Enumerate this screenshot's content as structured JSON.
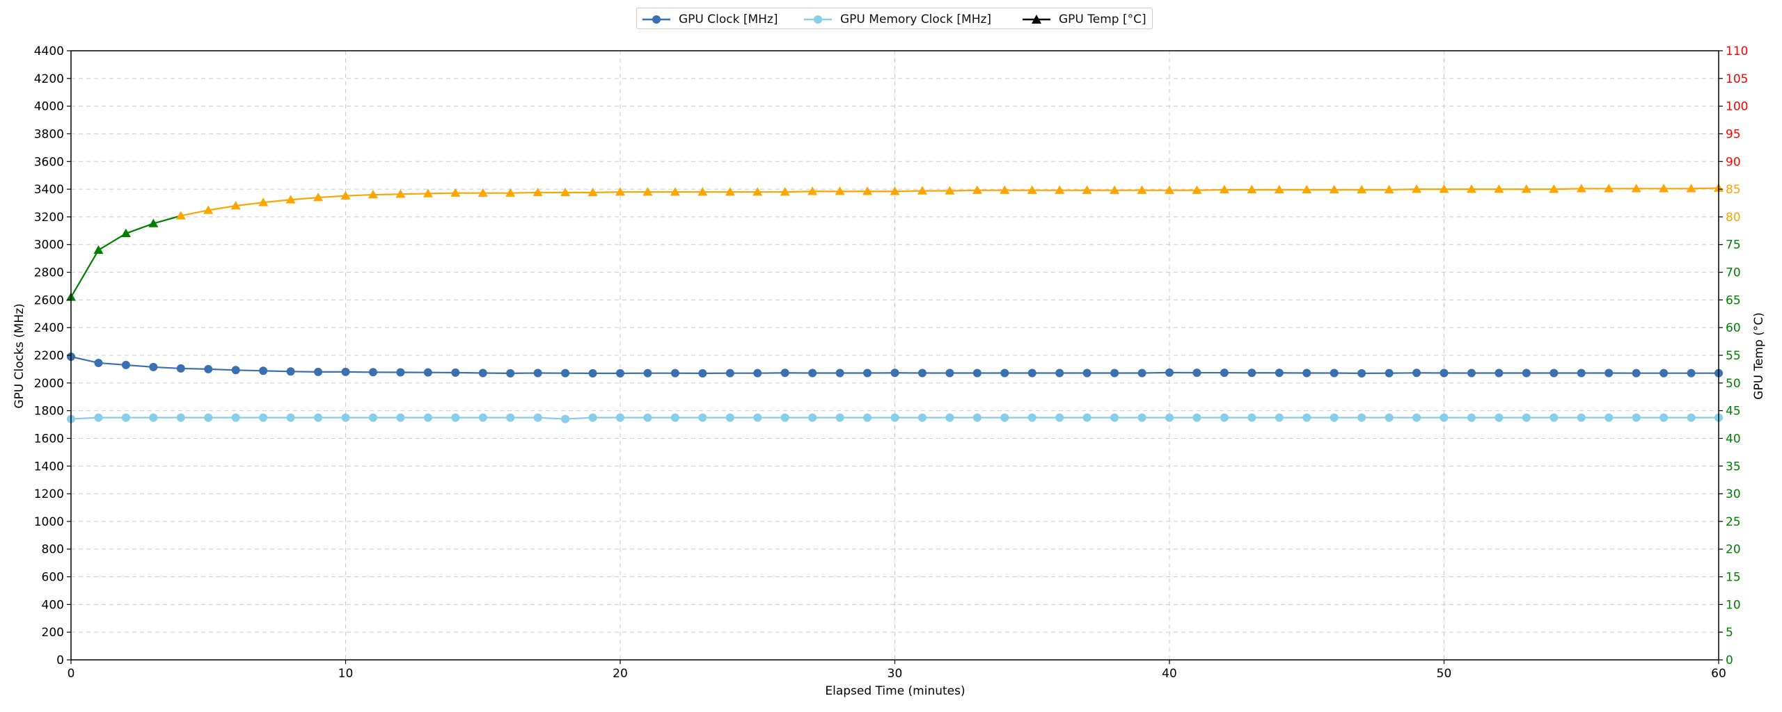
{
  "chart_data": {
    "type": "line",
    "xlabel": "Elapsed Time (minutes)",
    "ylabel_left": "GPU Clocks (MHz)",
    "ylabel_right": "GPU Temp (°C)",
    "xlim": [
      0,
      60
    ],
    "ylim_left": [
      0,
      4400
    ],
    "ylim_right": [
      0,
      110
    ],
    "x_ticks": [
      0,
      10,
      20,
      30,
      40,
      50,
      60
    ],
    "y_ticks_left": [
      0,
      200,
      400,
      600,
      800,
      1000,
      1200,
      1400,
      1600,
      1800,
      2000,
      2200,
      2400,
      2600,
      2800,
      3000,
      3200,
      3400,
      3600,
      3800,
      4000,
      4200,
      4400
    ],
    "y_ticks_right": [
      0,
      5,
      10,
      15,
      20,
      25,
      30,
      35,
      40,
      45,
      50,
      55,
      60,
      65,
      70,
      75,
      80,
      85,
      90,
      95,
      100,
      105,
      110
    ],
    "grid": true,
    "legend_position": "top-center",
    "right_tick_colors": {
      "green_below": 80,
      "orange": [
        80,
        85
      ],
      "red_above": 85,
      "green": "#008000",
      "orange_color": "#FFA500",
      "red": "#FF0000"
    },
    "temp_color_threshold": 80,
    "series": [
      {
        "name": "GPU Clock [MHz]",
        "axis": "left",
        "color": "#3a6fb0",
        "marker": "circle",
        "x": [
          0,
          1,
          2,
          3,
          4,
          5,
          6,
          7,
          8,
          9,
          10,
          11,
          12,
          13,
          14,
          15,
          16,
          17,
          18,
          19,
          20,
          21,
          22,
          23,
          24,
          25,
          26,
          27,
          28,
          29,
          30,
          31,
          32,
          33,
          34,
          35,
          36,
          37,
          38,
          39,
          40,
          41,
          42,
          43,
          44,
          45,
          46,
          47,
          48,
          49,
          50,
          51,
          52,
          53,
          54,
          55,
          56,
          57,
          58,
          59,
          60
        ],
        "values": [
          2190,
          2145,
          2130,
          2115,
          2105,
          2100,
          2093,
          2088,
          2083,
          2080,
          2080,
          2078,
          2077,
          2076,
          2075,
          2072,
          2070,
          2072,
          2071,
          2070,
          2070,
          2071,
          2071,
          2070,
          2071,
          2071,
          2073,
          2072,
          2072,
          2072,
          2073,
          2072,
          2072,
          2072,
          2072,
          2072,
          2072,
          2072,
          2072,
          2072,
          2075,
          2074,
          2074,
          2073,
          2073,
          2072,
          2072,
          2070,
          2071,
          2073,
          2072,
          2072,
          2072,
          2072,
          2072,
          2072,
          2072,
          2071,
          2071,
          2071,
          2071
        ]
      },
      {
        "name": "GPU Memory Clock [MHz]",
        "axis": "left",
        "color": "#87ceeb",
        "marker": "circle",
        "x": [
          0,
          1,
          2,
          3,
          4,
          5,
          6,
          7,
          8,
          9,
          10,
          11,
          12,
          13,
          14,
          15,
          16,
          17,
          18,
          19,
          20,
          21,
          22,
          23,
          24,
          25,
          26,
          27,
          28,
          29,
          30,
          31,
          32,
          33,
          34,
          35,
          36,
          37,
          38,
          39,
          40,
          41,
          42,
          43,
          44,
          45,
          46,
          47,
          48,
          49,
          50,
          51,
          52,
          53,
          54,
          55,
          56,
          57,
          58,
          59,
          60
        ],
        "values": [
          1740,
          1750,
          1750,
          1750,
          1750,
          1750,
          1750,
          1750,
          1750,
          1750,
          1750,
          1750,
          1750,
          1750,
          1750,
          1750,
          1750,
          1750,
          1740,
          1750,
          1750,
          1750,
          1750,
          1750,
          1750,
          1750,
          1750,
          1750,
          1750,
          1750,
          1750,
          1750,
          1750,
          1750,
          1750,
          1750,
          1750,
          1750,
          1750,
          1750,
          1750,
          1750,
          1750,
          1750,
          1750,
          1750,
          1750,
          1750,
          1750,
          1750,
          1750,
          1750,
          1750,
          1750,
          1750,
          1750,
          1750,
          1750,
          1750,
          1750,
          1750
        ]
      },
      {
        "name": "GPU Temp [°C]",
        "axis": "right",
        "color": "#000000",
        "marker": "triangle",
        "x": [
          0,
          1,
          2,
          3,
          4,
          5,
          6,
          7,
          8,
          9,
          10,
          11,
          12,
          13,
          14,
          15,
          16,
          17,
          18,
          19,
          20,
          21,
          22,
          23,
          24,
          25,
          26,
          27,
          28,
          29,
          30,
          31,
          32,
          33,
          34,
          35,
          36,
          37,
          38,
          39,
          40,
          41,
          42,
          43,
          44,
          45,
          46,
          47,
          48,
          49,
          50,
          51,
          52,
          53,
          54,
          55,
          56,
          57,
          58,
          59,
          60
        ],
        "values": [
          65.5,
          74,
          77,
          78.8,
          80.2,
          81.2,
          82,
          82.6,
          83.1,
          83.5,
          83.8,
          84,
          84.1,
          84.2,
          84.3,
          84.3,
          84.3,
          84.4,
          84.4,
          84.4,
          84.5,
          84.5,
          84.5,
          84.5,
          84.5,
          84.5,
          84.5,
          84.6,
          84.6,
          84.6,
          84.6,
          84.7,
          84.7,
          84.8,
          84.8,
          84.8,
          84.8,
          84.8,
          84.8,
          84.8,
          84.8,
          84.8,
          84.9,
          84.9,
          84.9,
          84.9,
          84.9,
          84.9,
          84.9,
          85,
          85,
          85,
          85,
          85,
          85,
          85.1,
          85.1,
          85.1,
          85.1,
          85.1,
          85.2
        ]
      }
    ]
  }
}
